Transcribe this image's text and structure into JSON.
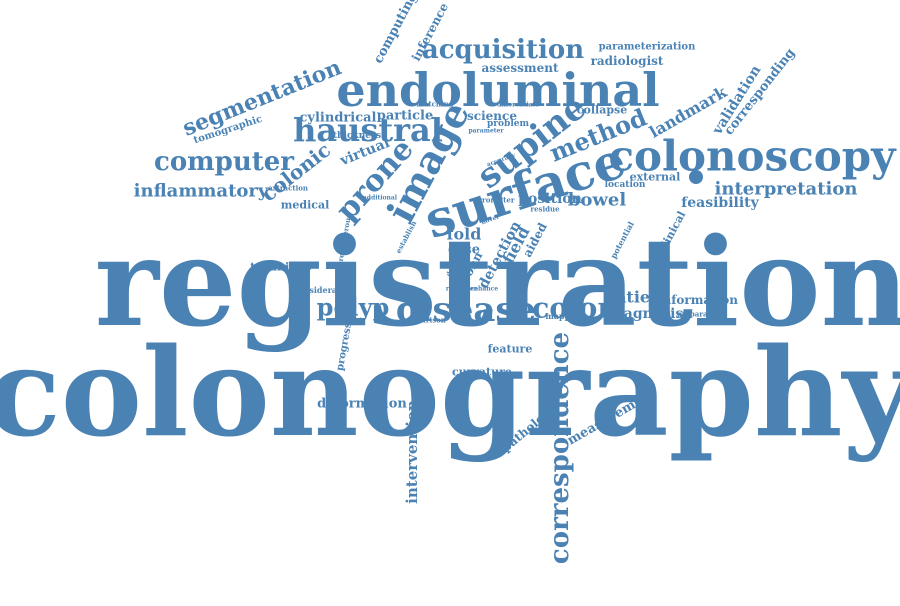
{
  "word_color": "#4a82b4",
  "words": [
    {
      "text": "registration",
      "angle": 0
    },
    {
      "text": "colonography",
      "angle": 0
    },
    {
      "text": "surface",
      "angle": -18
    },
    {
      "text": "colonoscopy",
      "angle": 0
    },
    {
      "text": "endoluminal",
      "angle": 0
    },
    {
      "text": "haustral",
      "angle": 0
    },
    {
      "text": "image",
      "angle": -62
    },
    {
      "text": "supine",
      "angle": -38
    },
    {
      "text": "prone",
      "angle": -48
    },
    {
      "text": "method",
      "angle": -22
    },
    {
      "text": "disease",
      "angle": 0
    },
    {
      "text": "colon",
      "angle": 0
    },
    {
      "text": "polyp",
      "angle": 0
    },
    {
      "text": "correspondence",
      "angle": -90
    },
    {
      "text": "computer",
      "angle": 0
    },
    {
      "text": "colonic",
      "angle": -38
    },
    {
      "text": "segmentation",
      "angle": -22
    },
    {
      "text": "acquisition",
      "angle": 0
    },
    {
      "text": "inflammatory",
      "angle": 0
    },
    {
      "text": "interpretation",
      "angle": 0
    },
    {
      "text": "feasibility",
      "angle": 0
    },
    {
      "text": "bowel",
      "angle": 0
    },
    {
      "text": "position",
      "angle": 0
    },
    {
      "text": "virtual",
      "angle": -22
    },
    {
      "text": "landmark",
      "angle": -30
    },
    {
      "text": "validation",
      "angle": -58
    },
    {
      "text": "corresponding",
      "angle": -52
    },
    {
      "text": "computing",
      "angle": -62
    },
    {
      "text": "inference",
      "angle": -62
    },
    {
      "text": "assessment",
      "angle": 0
    },
    {
      "text": "radiologist",
      "angle": 0
    },
    {
      "text": "parameterization",
      "angle": 0
    },
    {
      "text": "cylindrical",
      "angle": 0
    },
    {
      "text": "particle",
      "angle": 0
    },
    {
      "text": "tomographic",
      "angle": -18
    },
    {
      "text": "collapse",
      "angle": 0
    },
    {
      "text": "external",
      "angle": 0
    },
    {
      "text": "location",
      "angle": 0
    },
    {
      "text": "medical",
      "angle": 0
    },
    {
      "text": "technique",
      "angle": 0
    },
    {
      "text": "fold",
      "angle": 0
    },
    {
      "text": "case",
      "angle": 0
    },
    {
      "text": "field",
      "angle": -62
    },
    {
      "text": "detection",
      "angle": -62
    },
    {
      "text": "crohn",
      "angle": -62
    },
    {
      "text": "patient",
      "angle": 0
    },
    {
      "text": "information",
      "angle": 0
    },
    {
      "text": "diagnosis",
      "angle": 0
    },
    {
      "text": "feature",
      "angle": 0
    },
    {
      "text": "curvature",
      "angle": 0
    },
    {
      "text": "deformation",
      "angle": 0
    },
    {
      "text": "intervention",
      "angle": -90
    },
    {
      "text": "pathology",
      "angle": -40
    },
    {
      "text": "measurement",
      "angle": -30
    },
    {
      "text": "progression",
      "angle": -80
    },
    {
      "text": "considerable",
      "angle": 0
    },
    {
      "text": "comparison",
      "angle": 0
    },
    {
      "text": "mapping",
      "angle": 0
    },
    {
      "text": "preparation",
      "angle": 0
    },
    {
      "text": "clinical",
      "angle": -62
    },
    {
      "text": "potential",
      "angle": -62
    },
    {
      "text": "thickness",
      "angle": 0
    },
    {
      "text": "extraction",
      "angle": 0
    },
    {
      "text": "matching",
      "angle": 0
    },
    {
      "text": "science",
      "angle": 0
    },
    {
      "text": "problem",
      "angle": 0
    },
    {
      "text": "differentiate",
      "angle": 0
    },
    {
      "text": "parameter",
      "angle": 0
    },
    {
      "text": "accuracy",
      "angle": -20
    },
    {
      "text": "error",
      "angle": 0
    },
    {
      "text": "filter",
      "angle": 0
    },
    {
      "text": "residue",
      "angle": 0
    },
    {
      "text": "precancerous",
      "angle": -80
    },
    {
      "text": "establish",
      "angle": -62
    },
    {
      "text": "derived",
      "angle": -62
    },
    {
      "text": "aided",
      "angle": -62
    },
    {
      "text": "additional",
      "angle": 0
    },
    {
      "text": "reference",
      "angle": 0
    },
    {
      "text": "enhance",
      "angle": 0
    },
    {
      "text": "novel",
      "angle": -20
    }
  ]
}
